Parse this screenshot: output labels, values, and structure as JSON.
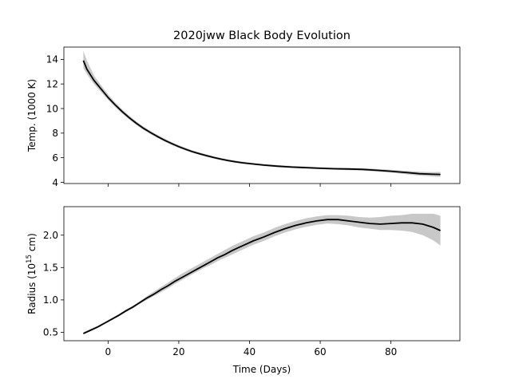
{
  "chart_data": [
    {
      "type": "line",
      "title": "2020jww Black Body Evolution",
      "xlabel": "",
      "ylabel": "Temp. (1000 K)",
      "xlim": [
        -12.5,
        99.5
      ],
      "ylim": [
        3.9,
        15.0
      ],
      "xticks": [
        0,
        20,
        40,
        60,
        80
      ],
      "yticks": [
        4,
        6,
        8,
        10,
        12,
        14
      ],
      "ytick_labels": [
        "4",
        "6",
        "8",
        "10",
        "12",
        "14"
      ],
      "grid": false,
      "band_color": "#c8c8c8",
      "line_color": "#000000",
      "series": [
        {
          "x": [
            -7,
            -6,
            -4,
            -2,
            0,
            2,
            4,
            6,
            8,
            10,
            12,
            14,
            16,
            18,
            20,
            22,
            24,
            26,
            28,
            30,
            32,
            34,
            36,
            38,
            40,
            44,
            48,
            52,
            56,
            60,
            64,
            68,
            72,
            76,
            80,
            84,
            88,
            92,
            94
          ],
          "y": [
            13.9,
            13.2,
            12.3,
            11.6,
            10.9,
            10.3,
            9.75,
            9.25,
            8.8,
            8.4,
            8.05,
            7.72,
            7.42,
            7.15,
            6.9,
            6.68,
            6.48,
            6.31,
            6.15,
            6.01,
            5.88,
            5.77,
            5.67,
            5.59,
            5.52,
            5.4,
            5.31,
            5.24,
            5.19,
            5.14,
            5.1,
            5.08,
            5.05,
            4.98,
            4.9,
            4.8,
            4.7,
            4.65,
            4.64
          ],
          "y_lower": [
            13.3,
            12.8,
            12.0,
            11.35,
            10.7,
            10.12,
            9.58,
            9.1,
            8.66,
            8.27,
            7.92,
            7.6,
            7.3,
            7.03,
            6.79,
            6.57,
            6.38,
            6.21,
            6.05,
            5.92,
            5.79,
            5.68,
            5.58,
            5.5,
            5.44,
            5.32,
            5.23,
            5.16,
            5.11,
            5.06,
            5.02,
            4.99,
            4.95,
            4.87,
            4.78,
            4.66,
            4.55,
            4.47,
            4.44
          ],
          "y_upper": [
            14.7,
            13.9,
            12.7,
            11.9,
            11.15,
            10.5,
            9.93,
            9.42,
            8.95,
            8.54,
            8.18,
            7.85,
            7.55,
            7.27,
            7.02,
            6.8,
            6.59,
            6.42,
            6.25,
            6.11,
            5.98,
            5.87,
            5.77,
            5.68,
            5.61,
            5.49,
            5.4,
            5.33,
            5.28,
            5.23,
            5.19,
            5.17,
            5.15,
            5.09,
            5.02,
            4.94,
            4.86,
            4.83,
            4.84
          ]
        }
      ]
    },
    {
      "type": "line",
      "title": "",
      "xlabel": "Time (Days)",
      "ylabel_main": "Radius (10",
      "ylabel_exp": "15",
      "ylabel_end": " cm)",
      "xlim": [
        -12.5,
        99.5
      ],
      "ylim": [
        0.37,
        2.44
      ],
      "xticks": [
        0,
        20,
        40,
        60,
        80
      ],
      "xtick_labels": [
        "0",
        "20",
        "40",
        "60",
        "80"
      ],
      "yticks": [
        0.5,
        1.0,
        1.5,
        2.0
      ],
      "ytick_labels": [
        "0.5",
        "1.0",
        "1.5",
        "2.0"
      ],
      "grid": false,
      "band_color": "#c8c8c8",
      "line_color": "#000000",
      "series": [
        {
          "x": [
            -7,
            -5,
            -3,
            -1,
            1,
            3,
            5,
            7,
            9,
            11,
            13,
            15,
            17,
            19,
            21,
            23,
            25,
            27,
            29,
            31,
            33,
            35,
            37,
            39,
            41,
            44,
            47,
            50,
            53,
            56,
            59,
            62,
            65,
            68,
            71,
            74,
            77,
            80,
            83,
            86,
            89,
            92,
            94
          ],
          "y": [
            0.48,
            0.53,
            0.58,
            0.64,
            0.7,
            0.76,
            0.83,
            0.89,
            0.96,
            1.03,
            1.09,
            1.16,
            1.22,
            1.29,
            1.35,
            1.41,
            1.47,
            1.53,
            1.59,
            1.65,
            1.7,
            1.76,
            1.81,
            1.86,
            1.91,
            1.97,
            2.04,
            2.1,
            2.15,
            2.19,
            2.22,
            2.24,
            2.24,
            2.22,
            2.2,
            2.18,
            2.17,
            2.18,
            2.19,
            2.19,
            2.17,
            2.12,
            2.07
          ],
          "y_lower": [
            0.47,
            0.52,
            0.57,
            0.63,
            0.69,
            0.75,
            0.81,
            0.87,
            0.94,
            1.0,
            1.06,
            1.12,
            1.18,
            1.25,
            1.31,
            1.37,
            1.43,
            1.49,
            1.54,
            1.6,
            1.65,
            1.7,
            1.75,
            1.8,
            1.85,
            1.91,
            1.98,
            2.04,
            2.09,
            2.13,
            2.16,
            2.18,
            2.17,
            2.15,
            2.12,
            2.1,
            2.08,
            2.08,
            2.07,
            2.05,
            2.0,
            1.92,
            1.84
          ],
          "y_upper": [
            0.5,
            0.55,
            0.6,
            0.66,
            0.72,
            0.78,
            0.85,
            0.91,
            0.98,
            1.06,
            1.13,
            1.2,
            1.27,
            1.34,
            1.41,
            1.47,
            1.53,
            1.59,
            1.65,
            1.71,
            1.77,
            1.83,
            1.88,
            1.93,
            1.98,
            2.04,
            2.11,
            2.17,
            2.22,
            2.26,
            2.29,
            2.31,
            2.31,
            2.3,
            2.28,
            2.27,
            2.28,
            2.3,
            2.31,
            2.33,
            2.33,
            2.33,
            2.3
          ]
        }
      ]
    }
  ]
}
